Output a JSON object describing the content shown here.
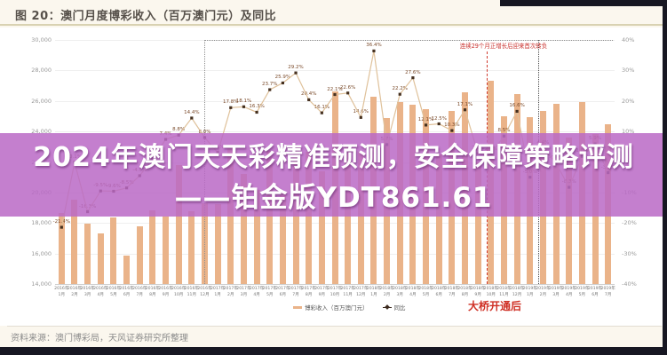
{
  "header": {
    "title": "图 20：澳门月度博彩收入（百万澳门元）及同比"
  },
  "overlay": {
    "line1": "2024年澳门天天彩精准预测，安全保障策略评测",
    "line2": "——铂金版YDT861.61",
    "color": "#ba69c5"
  },
  "footer": {
    "source": "资料来源：澳门博彩局，天风证券研究所整理"
  },
  "chart_data": {
    "type": "bar+line",
    "title": "澳门月度博彩收入（百万澳门元）及同比",
    "categories": [
      "2016年1月",
      "2016年2月",
      "2016年3月",
      "2016年4月",
      "2016年5月",
      "2016年6月",
      "2016年7月",
      "2016年8月",
      "2016年9月",
      "2016年10月",
      "2016年11月",
      "2016年12月",
      "2017年1月",
      "2017年2月",
      "2017年3月",
      "2017年4月",
      "2017年5月",
      "2017年6月",
      "2017年7月",
      "2017年8月",
      "2017年9月",
      "2017年10月",
      "2017年11月",
      "2017年12月",
      "2018年1月",
      "2018年2月",
      "2018年3月",
      "2018年4月",
      "2018年5月",
      "2018年6月",
      "2018年7月",
      "2018年8月",
      "2018年9月",
      "2018年10月",
      "2018年11月",
      "2018年12月",
      "2019年1月",
      "2019年2月",
      "2019年3月",
      "2019年4月",
      "2019年5月",
      "2019年6月",
      "2019年7月"
    ],
    "series": [
      {
        "name": "博彩收入（百万澳门元）",
        "type": "bar",
        "axis": "left",
        "color": "#eab389",
        "values": [
          18674,
          19519,
          17980,
          17340,
          18389,
          15885,
          17771,
          18837,
          18435,
          21811,
          18790,
          19277,
          19255,
          22992,
          21224,
          20164,
          22742,
          19992,
          22964,
          22676,
          21408,
          26630,
          23038,
          22684,
          26265,
          24885,
          25952,
          25746,
          25488,
          22490,
          25327,
          26559,
          21952,
          27328,
          24995,
          26468,
          24942,
          25370,
          25840,
          23588,
          25952,
          23812,
          24453
        ]
      },
      {
        "name": "同比",
        "type": "line",
        "axis": "right",
        "color": "#dfc19a",
        "marker_color": "#45301f",
        "values": [
          -21.4,
          -0.1,
          -16.3,
          -9.5,
          -9.6,
          -8.5,
          -4.5,
          1.1,
          7.4,
          8.8,
          14.4,
          8.0,
          3.1,
          17.8,
          18.1,
          16.3,
          23.7,
          25.9,
          29.2,
          20.4,
          16.1,
          22.1,
          22.6,
          14.6,
          36.4,
          5.7,
          22.2,
          27.6,
          12.1,
          12.5,
          10.3,
          17.1,
          2.8,
          2.6,
          8.5,
          16.6,
          -5.0,
          4.4,
          -0.4,
          -8.3,
          1.8,
          5.9,
          -3.5
        ]
      }
    ],
    "left_axis": {
      "min": 14000,
      "max": 30000,
      "ticks": [
        "30,000",
        "28,000",
        "26,000",
        "24,000",
        "22,000",
        "20,000",
        "18,000",
        "16,000",
        "14,000"
      ]
    },
    "right_axis": {
      "min": -40,
      "max": 40,
      "ticks": [
        "40%",
        "30%",
        "20%",
        "10%",
        "0%",
        "-10%",
        "-20%",
        "-30%",
        "-40%"
      ]
    },
    "legend": [
      {
        "label": "博彩收入（百万澳门元）",
        "color": "#eab389"
      },
      {
        "label": "同比",
        "color": "#45301f"
      }
    ],
    "annotations": {
      "growth_note": "连续29个月正增长后迎来首次转负",
      "bridge_note": "大桥开通后"
    },
    "layout_hints": {
      "grid": true,
      "legend_position": "bottom",
      "highlight_box_region": "2017-01 to 2019-07"
    }
  }
}
